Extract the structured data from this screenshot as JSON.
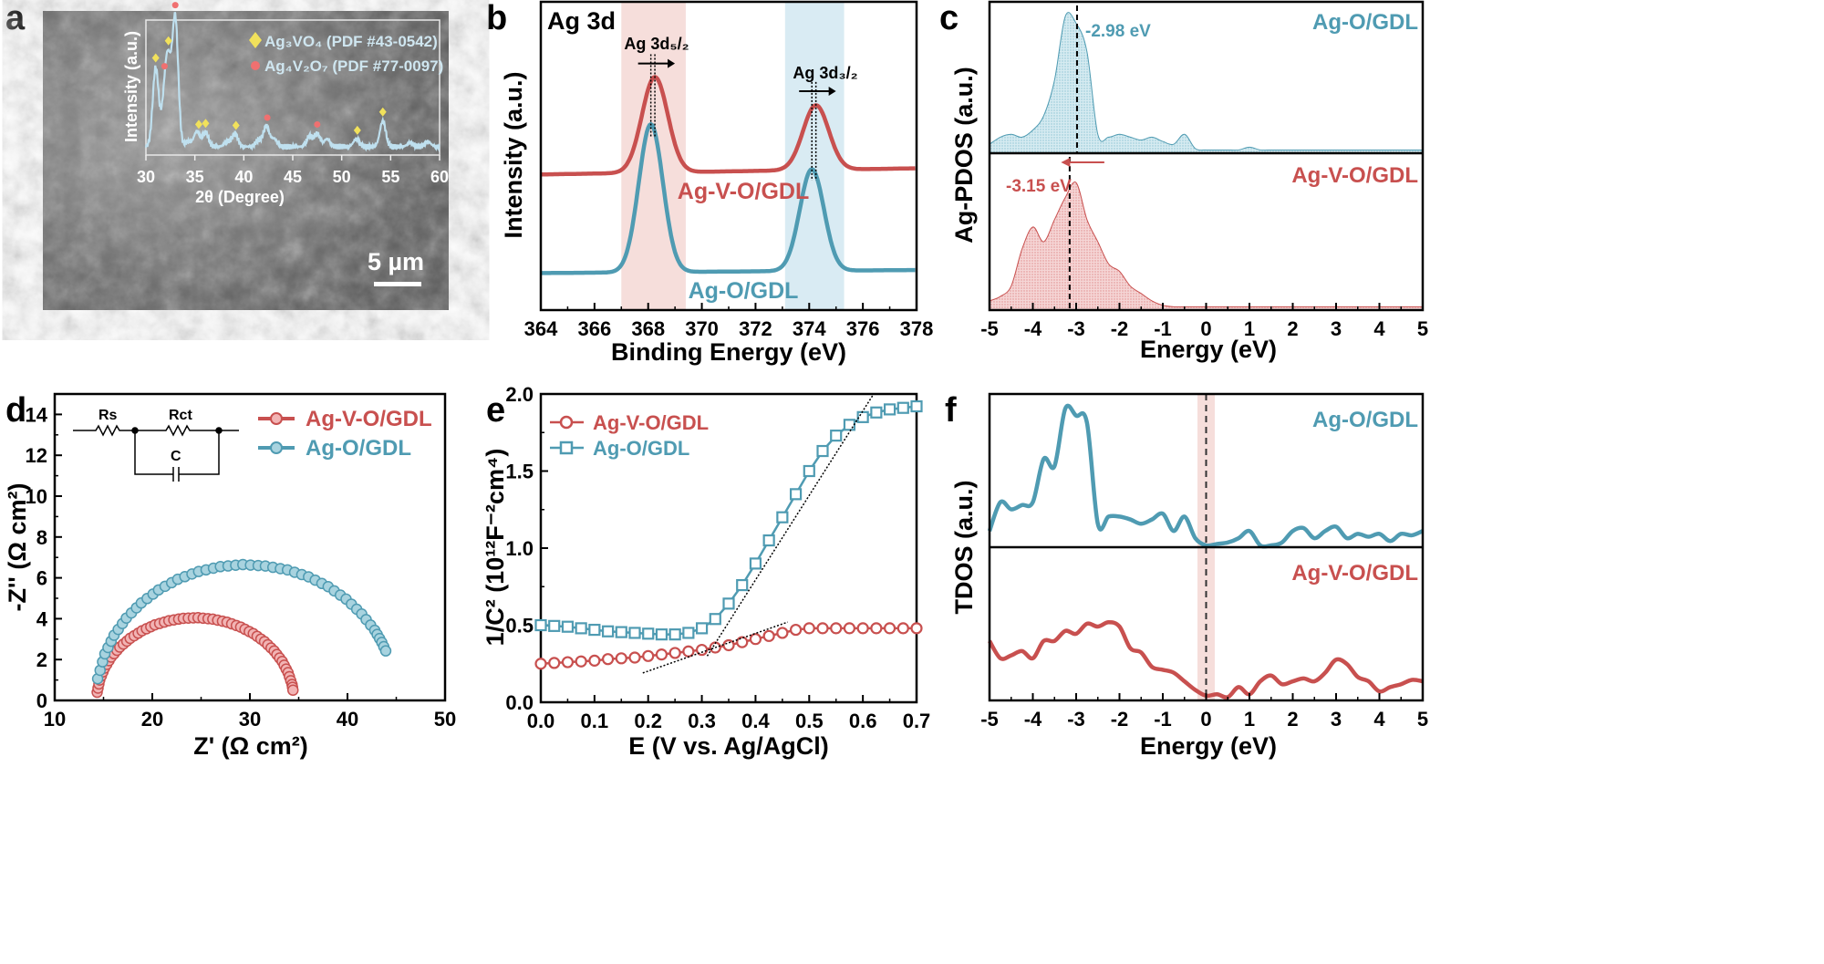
{
  "colors": {
    "red": "#c8504f",
    "blue": "#4f9bb2",
    "pink_band": "#f6dedb",
    "blue_band": "#d9ebf3",
    "xrd_line": "#bfe0ef",
    "diamond": "#f1e15b",
    "dot": "#f07070"
  },
  "chart_data": [
    {
      "panel": "a",
      "type": "line",
      "title": "",
      "panel_label": "a",
      "xlabel": "2θ (Degree)",
      "ylabel": "Intensity (a.u.)",
      "xlim": [
        30,
        60
      ],
      "xticks": [
        30,
        35,
        40,
        45,
        50,
        55,
        60
      ],
      "legend": [
        "Ag₃VO₄  (PDF #43-0542)",
        "Ag₄V₂O₇ (PDF #77-0097)"
      ],
      "peaks": [
        {
          "x": 31,
          "h": 0.62
        },
        {
          "x": 31.9,
          "h": 0.32
        },
        {
          "x": 32.3,
          "h": 0.56
        },
        {
          "x": 33,
          "h": 1.0
        },
        {
          "x": 34.3,
          "h": 0.04
        },
        {
          "x": 35.2,
          "h": 0.12
        },
        {
          "x": 36.1,
          "h": 0.11
        },
        {
          "x": 38.3,
          "h": 0.04
        },
        {
          "x": 39.1,
          "h": 0.1
        },
        {
          "x": 41.5,
          "h": 0.05
        },
        {
          "x": 42.3,
          "h": 0.16
        },
        {
          "x": 43.1,
          "h": 0.06
        },
        {
          "x": 46.7,
          "h": 0.08
        },
        {
          "x": 47.5,
          "h": 0.1
        },
        {
          "x": 48.5,
          "h": 0.06
        },
        {
          "x": 51.5,
          "h": 0.06
        },
        {
          "x": 54.2,
          "h": 0.2
        },
        {
          "x": 57,
          "h": 0.03
        },
        {
          "x": 58.8,
          "h": 0.04
        }
      ],
      "diamond_markers": [
        31,
        32.3,
        35.4,
        36.1,
        39.2,
        51.6,
        54.2
      ],
      "circle_markers": [
        31.9,
        33,
        42.4,
        47.5
      ],
      "scale_bar": "5 µm"
    },
    {
      "panel": "b",
      "type": "line",
      "panel_label": "b",
      "title": "Ag 3d",
      "xlabel": "Binding Energy (eV)",
      "ylabel": "Intensity (a.u.)",
      "xlim": [
        364,
        378
      ],
      "xticks": [
        364,
        366,
        368,
        370,
        372,
        374,
        376,
        378
      ],
      "ylim": [
        0,
        1
      ],
      "peak_labels": [
        "Ag 3d₅/₂",
        "Ag 3d₃/₂"
      ],
      "bands": [
        [
          367,
          369.4
        ],
        [
          373.1,
          375.3
        ]
      ],
      "series": [
        {
          "name": "Ag-V-O/GDL",
          "color": "red",
          "baseline": [
            0.44,
            0.46
          ],
          "peaks": [
            {
              "center": 368.25,
              "height": 0.31,
              "sigma": 0.48
            },
            {
              "center": 374.25,
              "height": 0.21,
              "sigma": 0.48
            }
          ]
        },
        {
          "name": "Ag-O/GDL",
          "color": "blue",
          "baseline": [
            0.12,
            0.13
          ],
          "peaks": [
            {
              "center": 368.1,
              "height": 0.48,
              "sigma": 0.45
            },
            {
              "center": 374.1,
              "height": 0.33,
              "sigma": 0.45
            }
          ]
        }
      ]
    },
    {
      "panel": "c",
      "type": "area",
      "panel_label": "c",
      "xlabel": "Energy (eV)",
      "ylabel": "Ag-PDOS (a.u.)",
      "xlim": [
        -5,
        5
      ],
      "xticks": [
        -5,
        -4,
        -3,
        -2,
        -1,
        0,
        1,
        2,
        3,
        4,
        5
      ],
      "x_step": 0.25,
      "series": [
        {
          "name": "Ag-O/GDL",
          "color": "blue",
          "center_label": "-2.98 eV",
          "center": -2.98,
          "values": [
            0.05,
            0.1,
            0.12,
            0.1,
            0.15,
            0.25,
            0.5,
            0.95,
            0.9,
            0.7,
            0.12,
            0.1,
            0.12,
            0.1,
            0.08,
            0.1,
            0.07,
            0.05,
            0.12,
            0.02,
            0.01,
            0.01,
            0.01,
            0.01,
            0.03,
            0.01,
            0.01,
            0.01,
            0.01,
            0.01,
            0.01,
            0.01,
            0.01,
            0.01,
            0.01,
            0.01,
            0.01,
            0.01,
            0.01,
            0.01,
            0.01
          ]
        },
        {
          "name": "Ag-V-O/GDL",
          "color": "red",
          "center_label": "-3.15 eV",
          "center": -3.15,
          "values": [
            0.05,
            0.08,
            0.15,
            0.4,
            0.55,
            0.45,
            0.6,
            0.75,
            0.85,
            0.6,
            0.45,
            0.3,
            0.25,
            0.15,
            0.1,
            0.05,
            0.02,
            0.01,
            0.01,
            0.01,
            0.01,
            0.01,
            0.01,
            0.01,
            0.01,
            0.01,
            0.01,
            0.01,
            0.01,
            0.01,
            0.01,
            0.01,
            0.01,
            0.01,
            0.01,
            0.01,
            0.01,
            0.01,
            0.01,
            0.01,
            0.01
          ]
        }
      ]
    },
    {
      "panel": "d",
      "type": "scatter",
      "panel_label": "d",
      "xlabel": "Z' (Ω cm²)",
      "ylabel": "-Z'' (Ω cm²)",
      "xlim": [
        10,
        50
      ],
      "ylim": [
        0,
        15
      ],
      "xticks": [
        10,
        20,
        30,
        40,
        50
      ],
      "yticks": [
        0,
        2,
        4,
        6,
        8,
        10,
        12,
        14
      ],
      "circuit_labels": [
        "Rs",
        "Rct",
        "C"
      ],
      "series": [
        {
          "name": "Ag-V-O/GDL",
          "color": "red",
          "points": [
            [
              14.35,
              0.4
            ],
            [
              14.61,
              1.0
            ],
            [
              15.1,
              1.58
            ],
            [
              15.78,
              2.12
            ],
            [
              16.67,
              2.61
            ],
            [
              17.73,
              3.04
            ],
            [
              18.95,
              3.41
            ],
            [
              20.27,
              3.7
            ],
            [
              21.7,
              3.9
            ],
            [
              23.18,
              4.02
            ],
            [
              24.69,
              4.05
            ],
            [
              26.2,
              3.98
            ],
            [
              27.66,
              3.83
            ],
            [
              29.06,
              3.59
            ],
            [
              30.35,
              3.27
            ],
            [
              31.5,
              2.88
            ],
            [
              32.49,
              2.42
            ],
            [
              33.31,
              1.91
            ],
            [
              33.91,
              1.36
            ],
            [
              34.32,
              0.78
            ],
            [
              34.46,
              0.37
            ]
          ]
        },
        {
          "name": "Ag-O/GDL",
          "color": "blue",
          "points": [
            [
              14.4,
              1.06
            ],
            [
              15.14,
              2.28
            ],
            [
              16.08,
              3.19
            ],
            [
              17.34,
              4.03
            ],
            [
              18.87,
              4.77
            ],
            [
              20.64,
              5.41
            ],
            [
              22.61,
              5.93
            ],
            [
              24.75,
              6.31
            ],
            [
              26.98,
              6.55
            ],
            [
              29.28,
              6.65
            ],
            [
              31.59,
              6.58
            ],
            [
              33.85,
              6.39
            ],
            [
              36.01,
              6.05
            ],
            [
              38.02,
              5.57
            ],
            [
              39.86,
              4.96
            ],
            [
              41.46,
              4.23
            ],
            [
              42.8,
              3.43
            ],
            [
              43.52,
              2.84
            ],
            [
              44.11,
              2.23
            ]
          ]
        }
      ]
    },
    {
      "panel": "e",
      "type": "line",
      "panel_label": "e",
      "xlabel": "E (V vs. Ag/AgCl)",
      "ylabel": "1/C² (10¹²F⁻²cm⁴)",
      "xlim": [
        0,
        0.7
      ],
      "ylim": [
        0,
        2.0
      ],
      "xticks": [
        0,
        0.1,
        0.2,
        0.3,
        0.4,
        0.5,
        0.6,
        0.7
      ],
      "yticks": [
        0,
        0.5,
        1.0,
        1.5,
        2.0
      ],
      "x": [
        0,
        0.025,
        0.05,
        0.075,
        0.1,
        0.125,
        0.15,
        0.175,
        0.2,
        0.225,
        0.25,
        0.275,
        0.3,
        0.325,
        0.35,
        0.375,
        0.4,
        0.425,
        0.45,
        0.475,
        0.5,
        0.525,
        0.55,
        0.575,
        0.6,
        0.625,
        0.65,
        0.675,
        0.7
      ],
      "series": [
        {
          "name": "Ag-V-O/GDL",
          "color": "red",
          "marker": "circle",
          "values": [
            0.25,
            0.255,
            0.26,
            0.265,
            0.27,
            0.28,
            0.285,
            0.29,
            0.3,
            0.31,
            0.32,
            0.33,
            0.34,
            0.355,
            0.37,
            0.39,
            0.41,
            0.43,
            0.45,
            0.47,
            0.48,
            0.48,
            0.48,
            0.48,
            0.48,
            0.48,
            0.48,
            0.48,
            0.48
          ],
          "fit": [
            [
              0.19,
              0.19
            ],
            [
              0.46,
              0.52
            ]
          ]
        },
        {
          "name": "Ag-O/GDL",
          "color": "blue",
          "marker": "square",
          "values": [
            0.5,
            0.495,
            0.49,
            0.48,
            0.47,
            0.46,
            0.455,
            0.45,
            0.445,
            0.44,
            0.44,
            0.45,
            0.48,
            0.54,
            0.64,
            0.76,
            0.9,
            1.05,
            1.2,
            1.35,
            1.5,
            1.63,
            1.73,
            1.8,
            1.85,
            1.88,
            1.9,
            1.91,
            1.92
          ],
          "fit": [
            [
              0.31,
              0.3
            ],
            [
              0.62,
              2.0
            ]
          ]
        }
      ]
    },
    {
      "panel": "f",
      "type": "line",
      "panel_label": "f",
      "xlabel": "Energy (eV)",
      "ylabel": "TDOS (a.u.)",
      "xlim": [
        -5,
        5
      ],
      "xticks": [
        -5,
        -4,
        -3,
        -2,
        -1,
        0,
        1,
        2,
        3,
        4,
        5
      ],
      "x_step": 0.25,
      "band": [
        -0.2,
        0.2
      ],
      "series": [
        {
          "name": "Ag-O/GDL",
          "color": "blue",
          "values": [
            0.1,
            0.3,
            0.25,
            0.28,
            0.3,
            0.6,
            0.55,
            0.95,
            0.9,
            0.85,
            0.15,
            0.2,
            0.2,
            0.18,
            0.15,
            0.18,
            0.22,
            0.1,
            0.2,
            0.05,
            0.0,
            0.01,
            0.02,
            0.05,
            0.1,
            0.0,
            0.0,
            0.02,
            0.1,
            0.12,
            0.05,
            0.1,
            0.13,
            0.05,
            0.08,
            0.06,
            0.08,
            0.03,
            0.08,
            0.07,
            0.1
          ]
        },
        {
          "name": "Ag-V-O/GDL",
          "color": "red",
          "values": [
            0.4,
            0.28,
            0.3,
            0.33,
            0.28,
            0.4,
            0.4,
            0.47,
            0.45,
            0.52,
            0.5,
            0.53,
            0.5,
            0.35,
            0.32,
            0.22,
            0.2,
            0.18,
            0.12,
            0.06,
            0.02,
            0.03,
            0.01,
            0.08,
            0.03,
            0.12,
            0.16,
            0.1,
            0.12,
            0.14,
            0.12,
            0.18,
            0.27,
            0.24,
            0.15,
            0.12,
            0.05,
            0.08,
            0.1,
            0.13,
            0.12
          ]
        }
      ]
    }
  ]
}
